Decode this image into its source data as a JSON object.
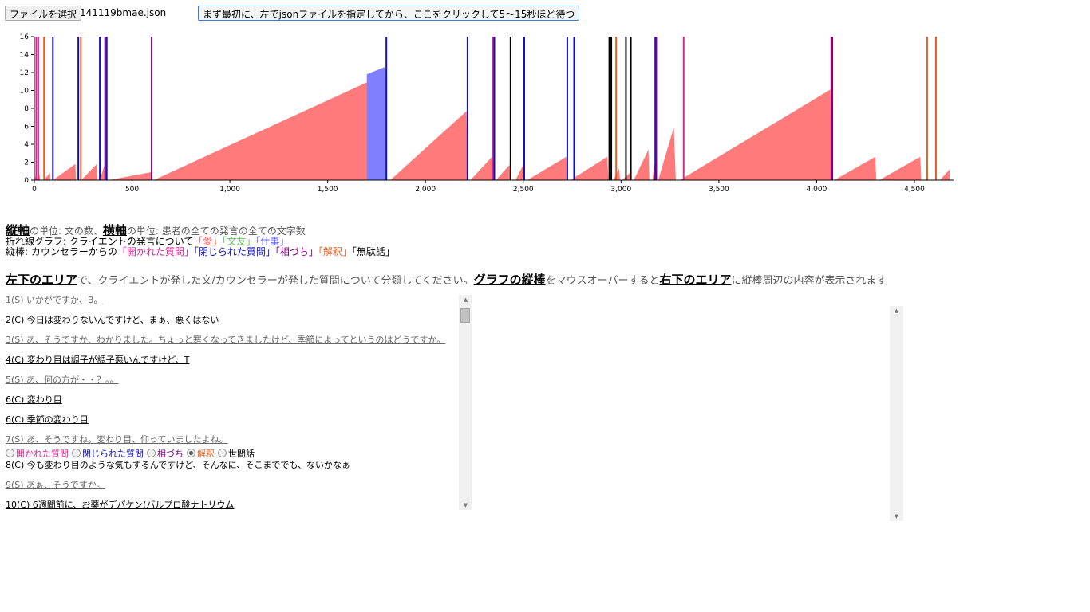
{
  "toolbar": {
    "file_button_label": "ファイルを選択",
    "file_name": "141119bmae.json",
    "run_button_label": "まず最初に、左でjsonファイルを指定してから、ここをクリックして5～15秒ほど待つ"
  },
  "chart_data": {
    "type": "area",
    "xlim": [
      0,
      4700
    ],
    "ylim": [
      0,
      16
    ],
    "x_ticks": [
      0,
      500,
      1000,
      1500,
      2000,
      2500,
      3000,
      3500,
      4000,
      4500
    ],
    "x_tick_labels": [
      "0",
      "500",
      "1,000",
      "1,500",
      "2,000",
      "2,500",
      "3,000",
      "3,500",
      "4,000",
      "4,500"
    ],
    "y_ticks": [
      0,
      2,
      4,
      6,
      8,
      10,
      12,
      14,
      16
    ],
    "series": [
      {
        "name": "愛",
        "color": "#ff7b7b",
        "points": [
          [
            0,
            0
          ],
          [
            10,
            0.8
          ],
          [
            12,
            0
          ],
          [
            25,
            0.8
          ],
          [
            30,
            0
          ],
          [
            48,
            0
          ],
          [
            80,
            0.8
          ],
          [
            82,
            0
          ],
          [
            95,
            0
          ],
          [
            210,
            1.8
          ],
          [
            213,
            0
          ],
          [
            240,
            0
          ],
          [
            320,
            1.8
          ],
          [
            323,
            0
          ],
          [
            335,
            0
          ],
          [
            360,
            1.8
          ],
          [
            363,
            0
          ],
          [
            380,
            0
          ],
          [
            600,
            0.9
          ],
          [
            605,
            0
          ],
          [
            610,
            0
          ],
          [
            1790,
            11.8
          ],
          [
            1800,
            0
          ],
          [
            1820,
            0
          ],
          [
            2210,
            7.7
          ],
          [
            2215,
            0
          ],
          [
            2230,
            0
          ],
          [
            2340,
            2.6
          ],
          [
            2345,
            0
          ],
          [
            2360,
            0
          ],
          [
            2430,
            1.7
          ],
          [
            2435,
            0
          ],
          [
            2460,
            0
          ],
          [
            2500,
            1.7
          ],
          [
            2505,
            0
          ],
          [
            2520,
            0
          ],
          [
            2720,
            2.6
          ],
          [
            2725,
            0
          ],
          [
            2740,
            0
          ],
          [
            2930,
            2.6
          ],
          [
            2935,
            0
          ],
          [
            2960,
            0
          ],
          [
            2990,
            1.3
          ],
          [
            2995,
            0
          ],
          [
            3005,
            0
          ],
          [
            3050,
            0.9
          ],
          [
            3055,
            0
          ],
          [
            3065,
            0
          ],
          [
            3140,
            3.4
          ],
          [
            3145,
            0
          ],
          [
            3160,
            0
          ],
          [
            3170,
            1.8
          ],
          [
            3180,
            0
          ],
          [
            3190,
            0
          ],
          [
            3270,
            5.9
          ],
          [
            3280,
            0
          ],
          [
            3300,
            0
          ],
          [
            4070,
            10.1
          ],
          [
            4075,
            0
          ],
          [
            4090,
            0
          ],
          [
            4300,
            2.6
          ],
          [
            4305,
            0
          ],
          [
            4320,
            0
          ],
          [
            4530,
            2.6
          ],
          [
            4535,
            0
          ],
          [
            4550,
            0
          ],
          [
            4630,
            0
          ],
          [
            4680,
            1.2
          ],
          [
            4680,
            0
          ]
        ]
      },
      {
        "name": "文友",
        "color": "#8080ff",
        "points": [
          [
            1700,
            11.8
          ],
          [
            1790,
            12.6
          ],
          [
            1800,
            12.0
          ]
        ]
      }
    ],
    "vertical_lines": [
      {
        "x": 10,
        "type": "開かれた質問",
        "color": "#e0238f"
      },
      {
        "x": 20,
        "type": "開かれた質問",
        "color": "#e0238f"
      },
      {
        "x": 50,
        "type": "解釈",
        "color": "#e06020"
      },
      {
        "x": 95,
        "type": "閉じられた質問",
        "color": "#1010c0"
      },
      {
        "x": 225,
        "type": "閉じられた質問",
        "color": "#1010c0"
      },
      {
        "x": 238,
        "type": "解釈",
        "color": "#e06020"
      },
      {
        "x": 335,
        "type": "閉じられた質問",
        "color": "#1010c0"
      },
      {
        "x": 362,
        "type": "相づち",
        "color": "#800080"
      },
      {
        "x": 370,
        "type": "閉じられた質問",
        "color": "#1010c0"
      },
      {
        "x": 600,
        "type": "相づち",
        "color": "#800080"
      },
      {
        "x": 1800,
        "type": "閉じられた質問",
        "color": "#1010c0"
      },
      {
        "x": 2215,
        "type": "閉じられた質問",
        "color": "#1010c0"
      },
      {
        "x": 2345,
        "type": "開かれた質問",
        "color": "#e0238f"
      },
      {
        "x": 2352,
        "type": "閉じられた質問",
        "color": "#1010c0"
      },
      {
        "x": 2435,
        "type": "無駄話",
        "color": "#000000"
      },
      {
        "x": 2505,
        "type": "閉じられた質問",
        "color": "#1010c0"
      },
      {
        "x": 2725,
        "type": "閉じられた質問",
        "color": "#1010c0"
      },
      {
        "x": 2760,
        "type": "閉じられた質問",
        "color": "#1010c0"
      },
      {
        "x": 2940,
        "type": "無駄話",
        "color": "#000000"
      },
      {
        "x": 2950,
        "type": "無駄話",
        "color": "#000000"
      },
      {
        "x": 2975,
        "type": "解釈",
        "color": "#e06020"
      },
      {
        "x": 3025,
        "type": "無駄話",
        "color": "#000000"
      },
      {
        "x": 3050,
        "type": "無駄話",
        "color": "#000000"
      },
      {
        "x": 3175,
        "type": "閉じられた質問",
        "color": "#1010c0"
      },
      {
        "x": 3180,
        "type": "相づち",
        "color": "#800080"
      },
      {
        "x": 3320,
        "type": "開かれた質問",
        "color": "#e0238f"
      },
      {
        "x": 4075,
        "type": "開かれた質問",
        "color": "#e0238f"
      },
      {
        "x": 4080,
        "type": "相づち",
        "color": "#800080"
      },
      {
        "x": 4565,
        "type": "解釈",
        "color": "#e06020"
      },
      {
        "x": 4610,
        "type": "解釈",
        "color": "#e06020"
      }
    ]
  },
  "legend": {
    "line1": {
      "vaxis": "縦軸",
      "vaxis_unit": "の単位: 文の数、",
      "haxis": "横軸",
      "haxis_unit": "の単位: 患者の全ての発言の全ての文字数"
    },
    "line2": {
      "prefix": "折れ線グラフ: クライエントの発言について",
      "items": [
        {
          "text": "「愛」",
          "color": "#ff6060"
        },
        {
          "text": "「文友」",
          "color": "#60c060"
        },
        {
          "text": "「仕事」",
          "color": "#6060ff"
        }
      ]
    },
    "line3": {
      "prefix": "縦棒: カウンセラーからの",
      "items": [
        {
          "text": "「開かれた質問」",
          "color": "#e0238f"
        },
        {
          "text": "「閉じられた質問」",
          "color": "#1010c0"
        },
        {
          "text": "「相づち」",
          "color": "#800080"
        },
        {
          "text": "「解釈」",
          "color": "#e06020"
        },
        {
          "text": "「無駄話」",
          "color": "#000000"
        }
      ]
    }
  },
  "instruction": {
    "left_area": "左下のエリア",
    "mid1": "で、クライエントが発した文/カウンセラーが発した質問について分類してください。",
    "graph_bar": "グラフの縦棒",
    "mid2": "をマウスオーバーすると",
    "right_area": "右下のエリア",
    "end": "に縦棒周辺の内容が表示されます"
  },
  "utterances": [
    {
      "speaker": "S",
      "text": "1(S) いかがですか、B。"
    },
    {
      "speaker": "C",
      "text": "2(C) 今日は変わりないんですけど、まぁ、悪くはない"
    },
    {
      "speaker": "S",
      "text": "3(S) あ、そうですか、わかりました。ちょっと寒くなってきましたけど、季節によってというのはどうですか。"
    },
    {
      "speaker": "C",
      "text": "4(C) 変わり目は調子が調子悪いんですけど、T"
    },
    {
      "speaker": "S",
      "text": "5(S) あ、何の方が・・？。。"
    },
    {
      "speaker": "C",
      "text": "6(C) 変わり目"
    },
    {
      "speaker": "C",
      "text": "6(C) 季節の変わり目"
    },
    {
      "speaker": "S",
      "text": "7(S) あ、そうですね。変わり目、仰っていましたよね。",
      "radios": true
    },
    {
      "speaker": "C",
      "text": "8(C) 今も変わり目のような気もするんですけど、そんなに、そこまででも、ないかなぁ"
    },
    {
      "speaker": "S",
      "text": "9(S) あぁ、そうですか。"
    },
    {
      "speaker": "C",
      "text": "10(C) 6週間前に、お薬がデパケン(バルプロ酸ナトリウム"
    }
  ],
  "radio_options": [
    {
      "label": "開かれた質問",
      "color": "#e0238f",
      "checked": false
    },
    {
      "label": "閉じられた質問",
      "color": "#1010c0",
      "checked": false
    },
    {
      "label": "相づち",
      "color": "#800080",
      "checked": false
    },
    {
      "label": "解釈",
      "color": "#e06020",
      "checked": true
    },
    {
      "label": "世間話",
      "color": "#000000",
      "checked": false
    }
  ]
}
